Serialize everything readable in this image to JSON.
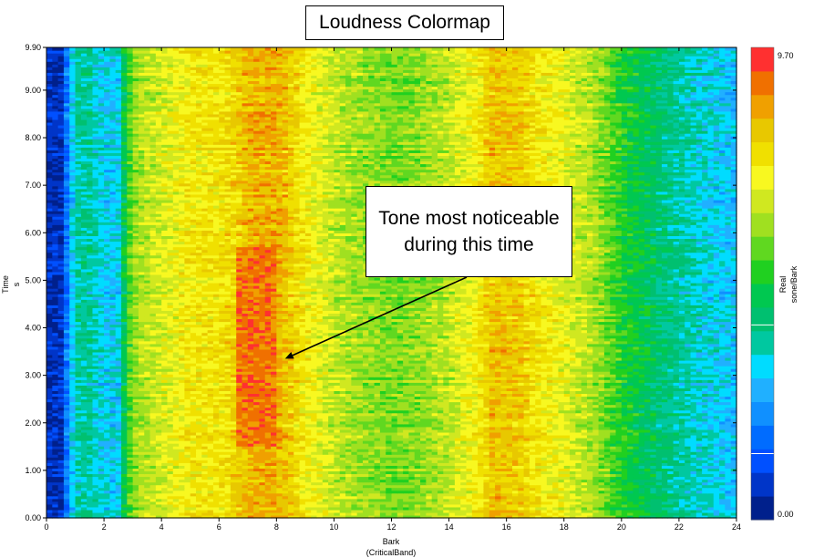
{
  "chart_data": {
    "type": "heatmap",
    "title": "Loudness Colormap",
    "xlabel": "Bark",
    "xlabel_sub": "(CriticalBand)",
    "ylabel": "Time",
    "ylabel_unit": "s",
    "xlim": [
      0,
      24
    ],
    "ylim": [
      0,
      9.9
    ],
    "x_ticks": [
      "0",
      "2",
      "4",
      "6",
      "8",
      "10",
      "12",
      "14",
      "16",
      "18",
      "20",
      "22",
      "24"
    ],
    "y_ticks": [
      "0.00",
      "1.00",
      "2.00",
      "3.00",
      "4.00",
      "5.00",
      "6.00",
      "7.00",
      "8.00",
      "9.00",
      "9.90"
    ],
    "colorbar": {
      "label_line1": "Real",
      "label_line2": "sone/Bark",
      "min_label": "0.00",
      "max_label": "9.70",
      "min": 0.0,
      "max": 9.7,
      "colors": [
        "#00208c",
        "#0035c8",
        "#0050ff",
        "#006cff",
        "#1090ff",
        "#20b0ff",
        "#00dcff",
        "#00c8a0",
        "#00c070",
        "#00c850",
        "#20d020",
        "#60d820",
        "#a0e020",
        "#d0e820",
        "#f8f820",
        "#f0e000",
        "#e8c800",
        "#f0a000",
        "#f07000",
        "#ff3030"
      ],
      "interval_value": 4.0
    },
    "band_profile_bark": [
      0.0,
      0.5,
      1.0,
      1.5,
      2.0,
      2.5,
      2.8,
      3.2,
      4.0,
      5.0,
      6.0,
      6.6,
      7.0,
      8.0,
      8.5,
      9.0,
      10.0,
      11.0,
      12.0,
      13.0,
      14.0,
      15.0,
      15.5,
      16.5,
      17.0,
      18.0,
      19.0,
      20.0,
      21.0,
      22.0,
      23.0,
      24.0
    ],
    "band_profile_sone": [
      0.6,
      0.6,
      3.6,
      3.7,
      3.0,
      3.1,
      5.2,
      6.2,
      6.6,
      7.3,
      7.4,
      7.7,
      8.2,
      8.3,
      7.8,
      7.2,
      6.4,
      6.0,
      5.7,
      5.9,
      6.4,
      7.2,
      8.0,
      7.9,
      7.4,
      6.8,
      6.2,
      5.0,
      4.3,
      3.7,
      3.2,
      2.8
    ],
    "tone_region": {
      "bark_start": 6.7,
      "bark_end": 8.0,
      "time_start": 1.5,
      "time_end": 5.7,
      "sone": 9.0
    }
  },
  "annotation": {
    "text": "Tone most noticeable during this time",
    "arrow_target_bark": 8.3,
    "arrow_target_time": 3.35
  }
}
